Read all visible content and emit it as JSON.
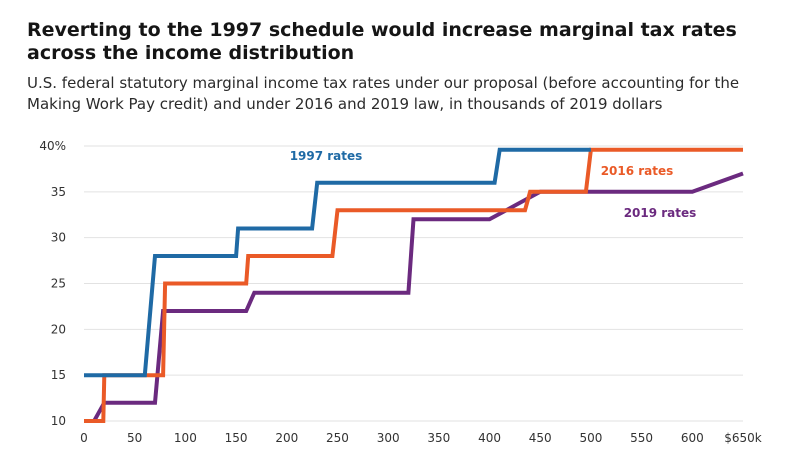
{
  "title": "Reverting to the 1997 schedule would increase marginal tax rates across the income distribution",
  "subtitle": "U.S. federal statutory marginal income tax rates under our proposal (before accounting for the Making Work Pay credit) and under 2016 and 2019 law, in thousands of 2019 dollars",
  "colors": {
    "rates_1997": "#1f6aa5",
    "rates_2016": "#ea5a27",
    "rates_2019": "#6b2a7f",
    "grid": "#e2e2e2"
  },
  "chart_data": {
    "type": "line",
    "title": "Reverting to the 1997 schedule would increase marginal tax rates across the income distribution",
    "subtitle": "U.S. federal statutory marginal income tax rates under our proposal (before accounting for the Making Work Pay credit) and under 2016 and 2019 law, in thousands of 2019 dollars",
    "xlabel": "",
    "ylabel": "",
    "xlim": [
      0,
      650
    ],
    "ylim": [
      10,
      40
    ],
    "x_ticks": [
      0,
      50,
      100,
      150,
      200,
      250,
      300,
      350,
      400,
      450,
      500,
      550,
      600,
      650
    ],
    "x_tick_labels": [
      "0",
      "50",
      "100",
      "150",
      "200",
      "250",
      "300",
      "350",
      "400",
      "450",
      "500",
      "550",
      "600",
      "$650k"
    ],
    "y_ticks": [
      10,
      15,
      20,
      25,
      30,
      35,
      40
    ],
    "y_tick_labels": [
      "10",
      "15",
      "20",
      "25",
      "30",
      "35",
      "40%"
    ],
    "grid": true,
    "series": [
      {
        "name": "1997 rates",
        "points": [
          [
            0,
            15
          ],
          [
            60,
            15
          ],
          [
            70,
            28
          ],
          [
            150,
            28
          ],
          [
            152,
            31
          ],
          [
            225,
            31
          ],
          [
            230,
            36
          ],
          [
            405,
            36
          ],
          [
            410,
            39.6
          ],
          [
            500,
            39.6
          ]
        ]
      },
      {
        "name": "2016 rates",
        "points": [
          [
            0,
            10
          ],
          [
            19,
            10
          ],
          [
            20,
            15
          ],
          [
            78,
            15
          ],
          [
            80,
            25
          ],
          [
            160,
            25
          ],
          [
            162,
            28
          ],
          [
            245,
            28
          ],
          [
            250,
            33
          ],
          [
            435,
            33
          ],
          [
            440,
            35
          ],
          [
            495,
            35
          ],
          [
            500,
            39.6
          ],
          [
            650,
            39.6
          ]
        ]
      },
      {
        "name": "2019 rates",
        "points": [
          [
            0,
            10
          ],
          [
            10,
            10
          ],
          [
            20,
            12
          ],
          [
            70,
            12
          ],
          [
            78,
            22
          ],
          [
            160,
            22
          ],
          [
            168,
            24
          ],
          [
            320,
            24
          ],
          [
            325,
            32
          ],
          [
            400,
            32
          ],
          [
            450,
            35
          ],
          [
            600,
            35
          ],
          [
            650,
            37
          ]
        ]
      }
    ]
  }
}
